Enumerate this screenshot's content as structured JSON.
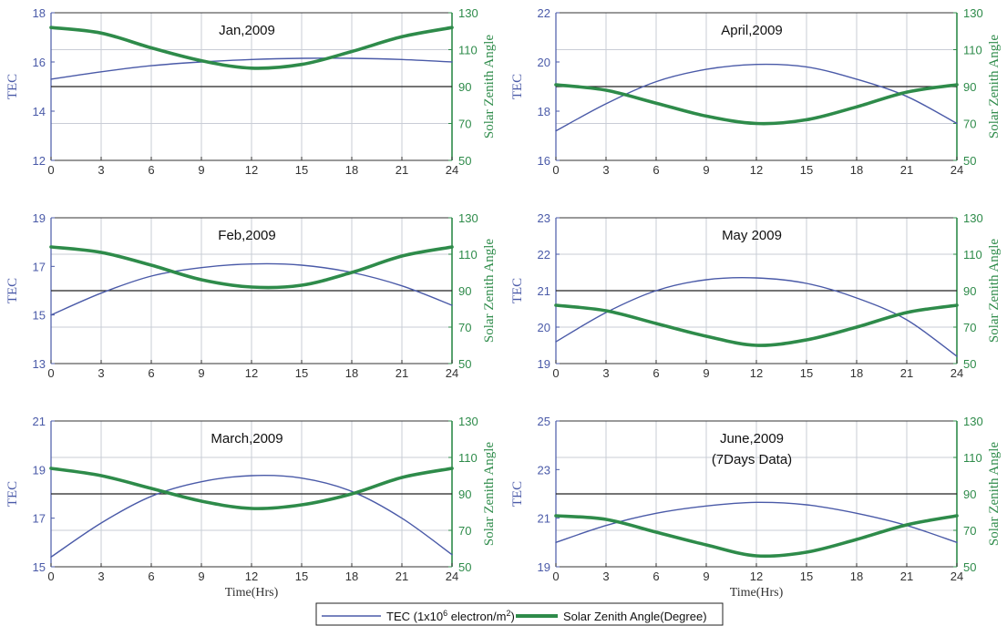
{
  "colors": {
    "tec": "#4a5aa8",
    "sza": "#2e8b4a",
    "ref_line": "#222222",
    "grid": "#c9cdd6",
    "frame": "#333333"
  },
  "legend": {
    "tec_label": "TEC (1x10",
    "tec_sup": "6",
    "tec_label_mid": " electron/m",
    "tec_sup2": "2",
    "tec_label_end": ")",
    "sza_label": "Solar Zenith Angle(Degree)"
  },
  "chart_data": [
    {
      "type": "line",
      "title": [
        "Jan,2009"
      ],
      "ylabel": "TEC",
      "y2label": "Solar Zenith Angle",
      "xlabel": "",
      "xlim": [
        0,
        24
      ],
      "xticks": [
        0,
        3,
        6,
        9,
        12,
        15,
        18,
        21,
        24
      ],
      "ylim": [
        12,
        18
      ],
      "yticks": [
        12,
        14,
        16,
        18
      ],
      "y2lim": [
        50,
        130
      ],
      "y2ticks": [
        50,
        70,
        90,
        110,
        130
      ],
      "ref_line_y2": 90,
      "grid": true,
      "x": [
        0,
        3,
        6,
        9,
        12,
        15,
        18,
        21,
        24
      ],
      "series": [
        {
          "name": "TEC (1x10^6 electron/m^2)",
          "axis": "left",
          "values": [
            15.3,
            15.6,
            15.85,
            16.0,
            16.1,
            16.15,
            16.15,
            16.1,
            16.0
          ]
        },
        {
          "name": "Solar Zenith Angle(Degree)",
          "axis": "right",
          "values": [
            122,
            119,
            111,
            104,
            100,
            102,
            109,
            117,
            122
          ]
        }
      ]
    },
    {
      "type": "line",
      "title": [
        "April,2009"
      ],
      "ylabel": "TEC",
      "y2label": "Solar Zenith Angle",
      "xlabel": "",
      "xlim": [
        0,
        24
      ],
      "xticks": [
        0,
        3,
        6,
        9,
        12,
        15,
        18,
        21,
        24
      ],
      "ylim": [
        16,
        22
      ],
      "yticks": [
        16,
        18,
        20,
        22
      ],
      "y2lim": [
        50,
        130
      ],
      "y2ticks": [
        50,
        70,
        90,
        110,
        130
      ],
      "ref_line_y2": 90,
      "grid": true,
      "x": [
        0,
        3,
        6,
        9,
        12,
        15,
        18,
        21,
        24
      ],
      "series": [
        {
          "name": "TEC (1x10^6 electron/m^2)",
          "axis": "left",
          "values": [
            17.2,
            18.3,
            19.2,
            19.7,
            19.9,
            19.8,
            19.3,
            18.6,
            17.5
          ]
        },
        {
          "name": "Solar Zenith Angle(Degree)",
          "axis": "right",
          "values": [
            91,
            88,
            81,
            74,
            70,
            72,
            79,
            87,
            91
          ]
        }
      ]
    },
    {
      "type": "line",
      "title": [
        "Feb,2009"
      ],
      "ylabel": "TEC",
      "y2label": "Solar Zenith Angle",
      "xlabel": "",
      "xlim": [
        0,
        24
      ],
      "xticks": [
        0,
        3,
        6,
        9,
        12,
        15,
        18,
        21,
        24
      ],
      "ylim": [
        13,
        19
      ],
      "yticks": [
        13,
        15,
        17,
        19
      ],
      "y2lim": [
        50,
        130
      ],
      "y2ticks": [
        50,
        70,
        90,
        110,
        130
      ],
      "ref_line_y2": 90,
      "grid": true,
      "x": [
        0,
        3,
        6,
        9,
        12,
        15,
        18,
        21,
        24
      ],
      "series": [
        {
          "name": "TEC (1x10^6 electron/m^2)",
          "axis": "left",
          "values": [
            15.0,
            15.9,
            16.6,
            16.95,
            17.1,
            17.05,
            16.75,
            16.2,
            15.4
          ]
        },
        {
          "name": "Solar Zenith Angle(Degree)",
          "axis": "right",
          "values": [
            114,
            111,
            104,
            96,
            92,
            93,
            100,
            109,
            114
          ]
        }
      ]
    },
    {
      "type": "line",
      "title": [
        "May 2009"
      ],
      "ylabel": "TEC",
      "y2label": "Solar Zenith Angle",
      "xlabel": "",
      "xlim": [
        0,
        24
      ],
      "xticks": [
        0,
        3,
        6,
        9,
        12,
        15,
        18,
        21,
        24
      ],
      "ylim": [
        19,
        23
      ],
      "yticks": [
        19,
        20,
        21,
        22,
        23
      ],
      "y2lim": [
        50,
        130
      ],
      "y2ticks": [
        50,
        70,
        90,
        110,
        130
      ],
      "ref_line_y2": 90,
      "grid": true,
      "x": [
        0,
        3,
        6,
        9,
        12,
        15,
        18,
        21,
        24
      ],
      "series": [
        {
          "name": "TEC (1x10^6 electron/m^2)",
          "axis": "left",
          "values": [
            19.6,
            20.4,
            21.0,
            21.3,
            21.35,
            21.2,
            20.8,
            20.2,
            19.2
          ]
        },
        {
          "name": "Solar Zenith Angle(Degree)",
          "axis": "right",
          "values": [
            82,
            79,
            72,
            65,
            60,
            63,
            70,
            78,
            82
          ]
        }
      ]
    },
    {
      "type": "line",
      "title": [
        "March,2009"
      ],
      "ylabel": "TEC",
      "y2label": "Solar Zenith Angle",
      "xlabel": "Time(Hrs)",
      "xlim": [
        0,
        24
      ],
      "xticks": [
        0,
        3,
        6,
        9,
        12,
        15,
        18,
        21,
        24
      ],
      "ylim": [
        15,
        21
      ],
      "yticks": [
        15,
        17,
        19,
        21
      ],
      "y2lim": [
        50,
        130
      ],
      "y2ticks": [
        50,
        70,
        90,
        110,
        130
      ],
      "ref_line_y2": 90,
      "grid": true,
      "x": [
        0,
        3,
        6,
        9,
        12,
        15,
        18,
        21,
        24
      ],
      "series": [
        {
          "name": "TEC (1x10^6 electron/m^2)",
          "axis": "left",
          "values": [
            15.4,
            16.8,
            17.9,
            18.5,
            18.75,
            18.65,
            18.1,
            17.0,
            15.5
          ]
        },
        {
          "name": "Solar Zenith Angle(Degree)",
          "axis": "right",
          "values": [
            104,
            100,
            93,
            86,
            82,
            84,
            90,
            99,
            104
          ]
        }
      ]
    },
    {
      "type": "line",
      "title": [
        "June,2009",
        "(7Days Data)"
      ],
      "ylabel": "TEC",
      "y2label": "Solar Zenith Angle",
      "xlabel": "Time(Hrs)",
      "xlim": [
        0,
        24
      ],
      "xticks": [
        0,
        3,
        6,
        9,
        12,
        15,
        18,
        21,
        24
      ],
      "ylim": [
        19,
        25
      ],
      "yticks": [
        19,
        21,
        23,
        25
      ],
      "y2lim": [
        50,
        130
      ],
      "y2ticks": [
        50,
        70,
        90,
        110,
        130
      ],
      "ref_line_y2": 90,
      "grid": true,
      "x": [
        0,
        3,
        6,
        9,
        12,
        15,
        18,
        21,
        24
      ],
      "series": [
        {
          "name": "TEC (1x10^6 electron/m^2)",
          "axis": "left",
          "values": [
            20.0,
            20.7,
            21.2,
            21.5,
            21.65,
            21.55,
            21.2,
            20.7,
            20.0
          ]
        },
        {
          "name": "Solar Zenith Angle(Degree)",
          "axis": "right",
          "values": [
            78,
            76,
            69,
            62,
            56,
            58,
            65,
            73,
            78
          ]
        }
      ]
    }
  ]
}
